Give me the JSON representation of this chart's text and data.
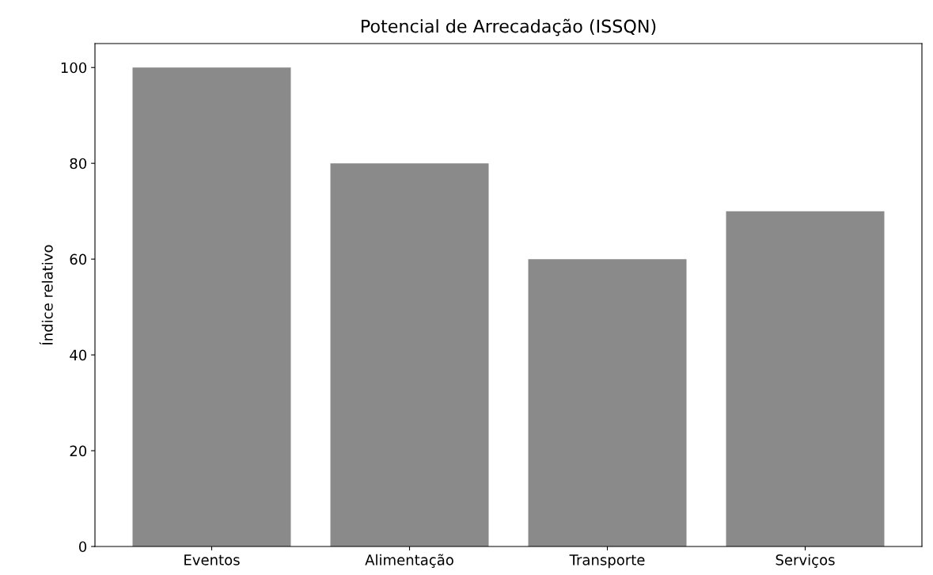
{
  "chart_data": {
    "type": "bar",
    "title": "Potencial de Arrecadação (ISSQN)",
    "ylabel": "Índice relativo",
    "categories": [
      "Eventos",
      "Alimentação",
      "Transporte",
      "Serviços"
    ],
    "values": [
      100,
      80,
      60,
      70
    ],
    "color": "#8a8a8a",
    "ylim": [
      0,
      105
    ],
    "yticks": [
      0,
      20,
      40,
      60,
      80,
      100
    ],
    "grid": false
  }
}
